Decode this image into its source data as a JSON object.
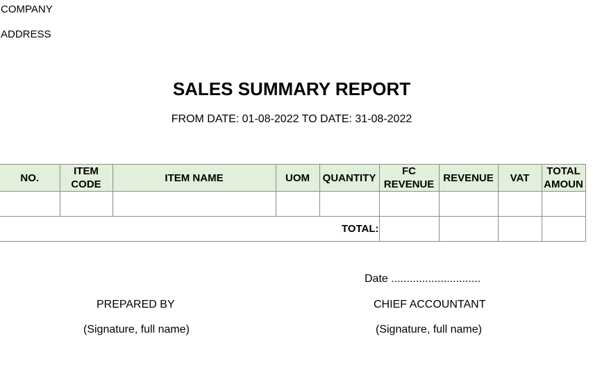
{
  "header": {
    "company": "COMPANY",
    "address": "ADDRESS",
    "title": "SALES SUMMARY REPORT",
    "date_range": "FROM DATE: 01-08-2022 TO DATE: 31-08-2022"
  },
  "table": {
    "columns": {
      "no": "NO.",
      "item_code_1": "ITEM",
      "item_code_2": "CODE",
      "item_name": "ITEM NAME",
      "uom": "UOM",
      "quantity": "QUANTITY",
      "fc_revenue_1": "FC",
      "fc_revenue_2": "REVENUE",
      "revenue": "REVENUE",
      "vat": "VAT",
      "total_amount_1": "TOTAL",
      "total_amount_2": "AMOUN"
    },
    "total_label": "TOTAL:",
    "header_fill": "#e2efda"
  },
  "footer": {
    "date_line": "Date .............................",
    "prepared_by": "PREPARED BY",
    "chief_accountant": "CHIEF ACCOUNTANT",
    "signature_left": "(Signature, full name)",
    "signature_right": "(Signature, full name)"
  }
}
